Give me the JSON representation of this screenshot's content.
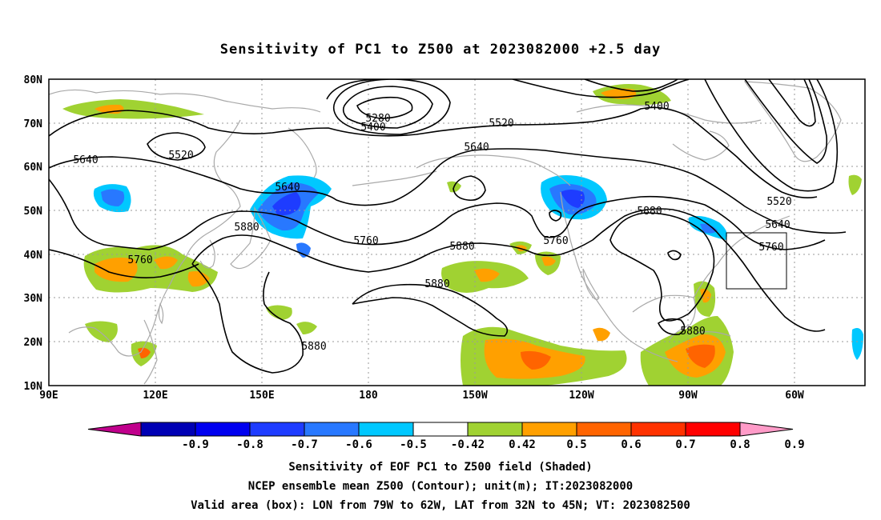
{
  "title": "Sensitivity of PC1 to Z500 at 2023082000 +2.5 day",
  "map": {
    "lon_ticks": [
      "90E",
      "120E",
      "150E",
      "180",
      "150W",
      "120W",
      "90W",
      "60W"
    ],
    "lat_ticks": [
      "80N",
      "70N",
      "60N",
      "50N",
      "40N",
      "30N",
      "20N",
      "10N"
    ],
    "contour_labels": [
      "5280",
      "5400",
      "5400",
      "5520",
      "5520",
      "5520",
      "5640",
      "5640",
      "5640",
      "5640",
      "5760",
      "5760",
      "5760",
      "5760",
      "5880",
      "5880",
      "5880",
      "5880",
      "5880"
    ],
    "valid_box": {
      "lon_from": "79W",
      "lon_to": "62W",
      "lat_from": "32N",
      "lat_to": "45N"
    }
  },
  "colorbar": {
    "labels": [
      "-0.9",
      "-0.8",
      "-0.7",
      "-0.6",
      "-0.5",
      "-0.42",
      "0.42",
      "0.5",
      "0.6",
      "0.7",
      "0.8",
      "0.9"
    ],
    "colors": [
      "#c0008c",
      "#0000b4",
      "#0000f0",
      "#1e3cff",
      "#2878ff",
      "#00c8ff",
      "#ffffff",
      "#a0d232",
      "#ffa000",
      "#ff6400",
      "#ff3200",
      "#ff0000",
      "#ff9bc8"
    ]
  },
  "captions": {
    "line1": "Sensitivity of EOF PC1 to Z500 field (Shaded)",
    "line2": "NCEP ensemble mean Z500 (Contour); unit(m); IT:2023082000",
    "line3": "Valid area (box): LON from 79W to 62W, LAT from 32N to 45N; VT: 2023082500"
  }
}
